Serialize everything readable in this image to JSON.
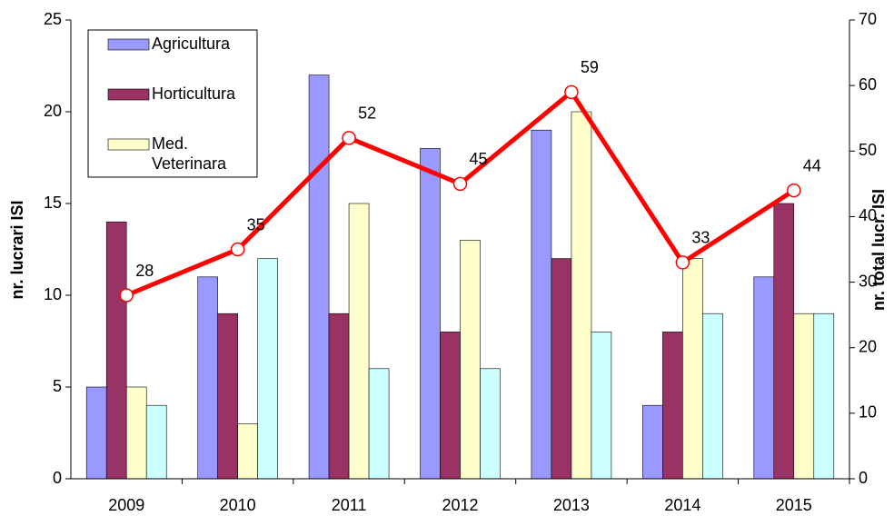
{
  "chart_data": {
    "type": "bar",
    "categories": [
      "2009",
      "2010",
      "2011",
      "2012",
      "2013",
      "2014",
      "2015"
    ],
    "series": [
      {
        "name": "Agricultura",
        "color": "#9999ff",
        "values": [
          5,
          11,
          22,
          18,
          19,
          4,
          11
        ]
      },
      {
        "name": "Horticultura",
        "color": "#993366",
        "values": [
          14,
          9,
          9,
          8,
          12,
          8,
          15
        ]
      },
      {
        "name": "Med. Veterinara",
        "color": "#ffffcc",
        "values": [
          5,
          3,
          15,
          13,
          20,
          12,
          9
        ]
      },
      {
        "color": "#ccffff",
        "values": [
          4,
          12,
          6,
          6,
          8,
          9,
          9
        ]
      },
      {
        "type": "line",
        "axis": "y2",
        "color": "#ff0000",
        "values": [
          28,
          35,
          52,
          45,
          59,
          33,
          44
        ]
      }
    ],
    "ylabel": "nr. lucrari ISI",
    "y2label": "nr. total lucr. ISI",
    "ylim": [
      0,
      25
    ],
    "yticks": [
      0,
      5,
      10,
      15,
      20,
      25
    ],
    "y2lim": [
      0,
      70
    ],
    "y2ticks": [
      0,
      10,
      20,
      30,
      40,
      50,
      60,
      70
    ],
    "grid": false,
    "legend": "upper left"
  }
}
